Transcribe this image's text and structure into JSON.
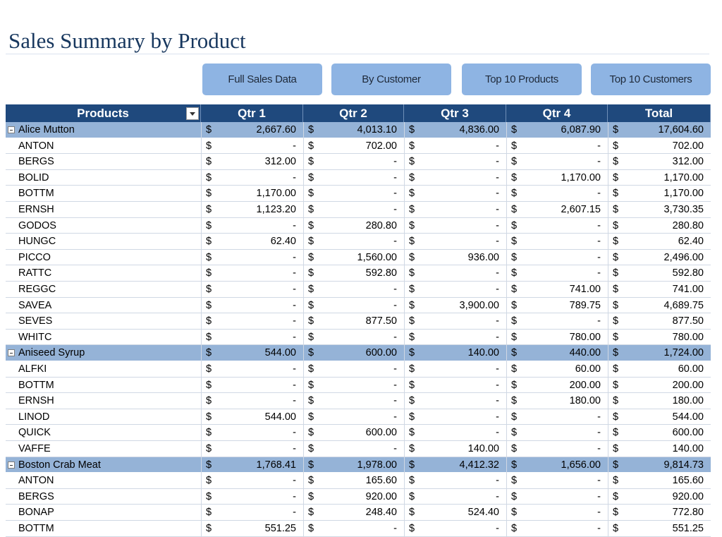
{
  "title": "Sales Summary by Product",
  "buttons": [
    "Full Sales Data",
    "By Customer",
    "Top 10 Products",
    "Top 10 Customers"
  ],
  "table": {
    "headers": [
      "Products",
      "Qtr 1",
      "Qtr 2",
      "Qtr 3",
      "Qtr 4",
      "Total"
    ],
    "currency": "$",
    "groups": [
      {
        "name": "Alice Mutton",
        "values": [
          "2,667.60",
          "4,013.10",
          "4,836.00",
          "6,087.90",
          "17,604.60"
        ],
        "items": [
          {
            "name": "ANTON",
            "values": [
              "-",
              "702.00",
              "-",
              "-",
              "702.00"
            ]
          },
          {
            "name": "BERGS",
            "values": [
              "312.00",
              "-",
              "-",
              "-",
              "312.00"
            ]
          },
          {
            "name": "BOLID",
            "values": [
              "-",
              "-",
              "-",
              "1,170.00",
              "1,170.00"
            ]
          },
          {
            "name": "BOTTM",
            "values": [
              "1,170.00",
              "-",
              "-",
              "-",
              "1,170.00"
            ]
          },
          {
            "name": "ERNSH",
            "values": [
              "1,123.20",
              "-",
              "-",
              "2,607.15",
              "3,730.35"
            ]
          },
          {
            "name": "GODOS",
            "values": [
              "-",
              "280.80",
              "-",
              "-",
              "280.80"
            ]
          },
          {
            "name": "HUNGC",
            "values": [
              "62.40",
              "-",
              "-",
              "-",
              "62.40"
            ]
          },
          {
            "name": "PICCO",
            "values": [
              "-",
              "1,560.00",
              "936.00",
              "-",
              "2,496.00"
            ]
          },
          {
            "name": "RATTC",
            "values": [
              "-",
              "592.80",
              "-",
              "-",
              "592.80"
            ]
          },
          {
            "name": "REGGC",
            "values": [
              "-",
              "-",
              "-",
              "741.00",
              "741.00"
            ]
          },
          {
            "name": "SAVEA",
            "values": [
              "-",
              "-",
              "3,900.00",
              "789.75",
              "4,689.75"
            ]
          },
          {
            "name": "SEVES",
            "values": [
              "-",
              "877.50",
              "-",
              "-",
              "877.50"
            ]
          },
          {
            "name": "WHITC",
            "values": [
              "-",
              "-",
              "-",
              "780.00",
              "780.00"
            ]
          }
        ]
      },
      {
        "name": "Aniseed Syrup",
        "values": [
          "544.00",
          "600.00",
          "140.00",
          "440.00",
          "1,724.00"
        ],
        "items": [
          {
            "name": "ALFKI",
            "values": [
              "-",
              "-",
              "-",
              "60.00",
              "60.00"
            ]
          },
          {
            "name": "BOTTM",
            "values": [
              "-",
              "-",
              "-",
              "200.00",
              "200.00"
            ]
          },
          {
            "name": "ERNSH",
            "values": [
              "-",
              "-",
              "-",
              "180.00",
              "180.00"
            ]
          },
          {
            "name": "LINOD",
            "values": [
              "544.00",
              "-",
              "-",
              "-",
              "544.00"
            ]
          },
          {
            "name": "QUICK",
            "values": [
              "-",
              "600.00",
              "-",
              "-",
              "600.00"
            ]
          },
          {
            "name": "VAFFE",
            "values": [
              "-",
              "-",
              "140.00",
              "-",
              "140.00"
            ]
          }
        ]
      },
      {
        "name": "Boston Crab Meat",
        "values": [
          "1,768.41",
          "1,978.00",
          "4,412.32",
          "1,656.00",
          "9,814.73"
        ],
        "items": [
          {
            "name": "ANTON",
            "values": [
              "-",
              "165.60",
              "-",
              "-",
              "165.60"
            ]
          },
          {
            "name": "BERGS",
            "values": [
              "-",
              "920.00",
              "-",
              "-",
              "920.00"
            ]
          },
          {
            "name": "BONAP",
            "values": [
              "-",
              "248.40",
              "524.40",
              "-",
              "772.80"
            ]
          },
          {
            "name": "BOTTM",
            "values": [
              "551.25",
              "-",
              "-",
              "-",
              "551.25"
            ]
          }
        ]
      }
    ]
  }
}
